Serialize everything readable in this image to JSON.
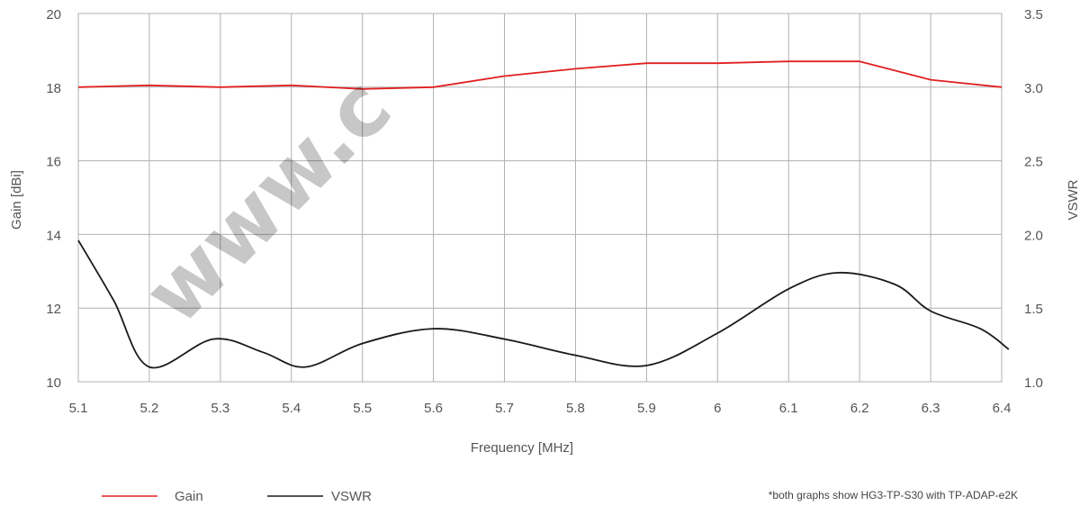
{
  "watermark": "www.c",
  "footnote": "*both graphs show HG3-TP-S30 with TP-ADAP-e2K",
  "chart_data": {
    "type": "line",
    "xlabel": "Frequency [MHz]",
    "ylabel_left": "Gain [dBi]",
    "ylabel_right": "VSWR",
    "x_ticks": [
      "5.1",
      "5.2",
      "5.3",
      "5.4",
      "5.5",
      "5.6",
      "5.7",
      "5.8",
      "5.9",
      "6",
      "6.1",
      "6.2",
      "6.3",
      "6.4"
    ],
    "y_left_ticks": [
      "10",
      "12",
      "14",
      "16",
      "18",
      "20"
    ],
    "y_right_ticks": [
      "1.0",
      "1.5",
      "2.0",
      "2.5",
      "3.0",
      "3.5"
    ],
    "xlim": [
      5.1,
      6.4
    ],
    "ylim_left": [
      10,
      20
    ],
    "ylim_right": [
      1.0,
      3.5
    ],
    "grid": true,
    "legend_position": "bottom-left",
    "series": [
      {
        "name": "Gain",
        "axis": "left",
        "color": "#e02020",
        "x": [
          5.1,
          5.2,
          5.3,
          5.4,
          5.5,
          5.6,
          5.7,
          5.8,
          5.9,
          6.0,
          6.1,
          6.2,
          6.3,
          6.4
        ],
        "values": [
          18.0,
          18.05,
          18.0,
          18.05,
          17.95,
          18.0,
          18.3,
          18.5,
          18.65,
          18.65,
          18.7,
          18.7,
          18.2,
          18.0
        ]
      },
      {
        "name": "VSWR",
        "axis": "right",
        "color": "#1a1a1a",
        "x": [
          5.1,
          5.15,
          5.2,
          5.29,
          5.36,
          5.42,
          5.5,
          5.6,
          5.7,
          5.8,
          5.9,
          6.0,
          6.1,
          6.17,
          6.25,
          6.3,
          6.37,
          6.41
        ],
        "values": [
          1.96,
          1.55,
          1.1,
          1.29,
          1.2,
          1.1,
          1.26,
          1.36,
          1.29,
          1.18,
          1.11,
          1.33,
          1.63,
          1.74,
          1.66,
          1.48,
          1.36,
          1.22
        ]
      }
    ]
  }
}
